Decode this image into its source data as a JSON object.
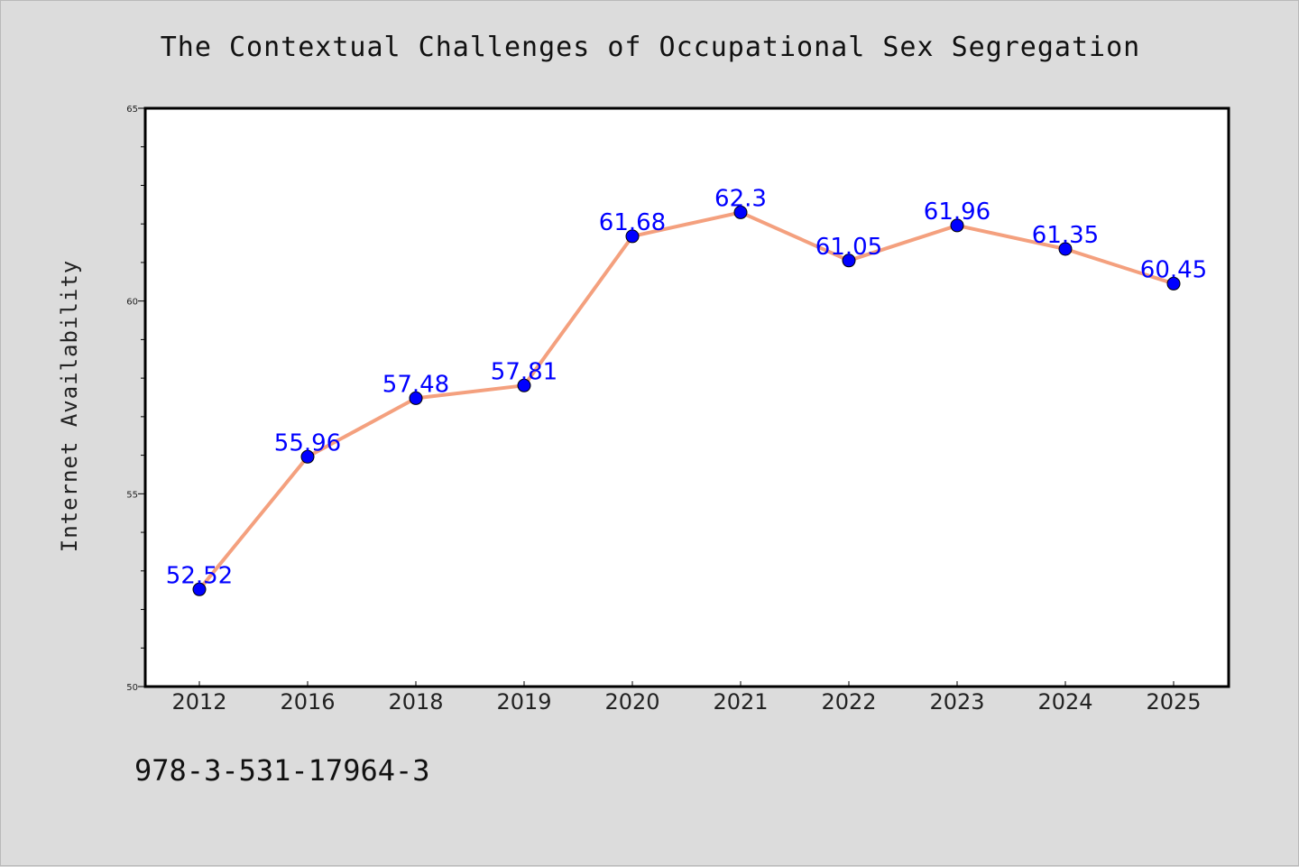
{
  "chart_data": {
    "type": "line",
    "title": "The Contextual Challenges of Occupational Sex Segregation",
    "xlabel": "",
    "ylabel": "Internet Availability",
    "categories": [
      "2012",
      "2016",
      "2018",
      "2019",
      "2020",
      "2021",
      "2022",
      "2023",
      "2024",
      "2025"
    ],
    "values": [
      52.52,
      55.96,
      57.48,
      57.81,
      61.68,
      62.3,
      61.05,
      61.96,
      61.35,
      60.45
    ],
    "data_labels": [
      "52.52",
      "55.96",
      "57.48",
      "57.81",
      "61.68",
      "62.3",
      "61.05",
      "61.96",
      "61.35",
      "60.45"
    ],
    "ylim": [
      50,
      65
    ],
    "yticks": [
      "50",
      "55",
      "60",
      "65"
    ],
    "grid": false,
    "legend": "none",
    "line_color": "#f4a07e",
    "marker_color": "#0000ff",
    "label_color": "#0000ff"
  },
  "footer": {
    "isbn": "978-3-531-17964-3"
  }
}
